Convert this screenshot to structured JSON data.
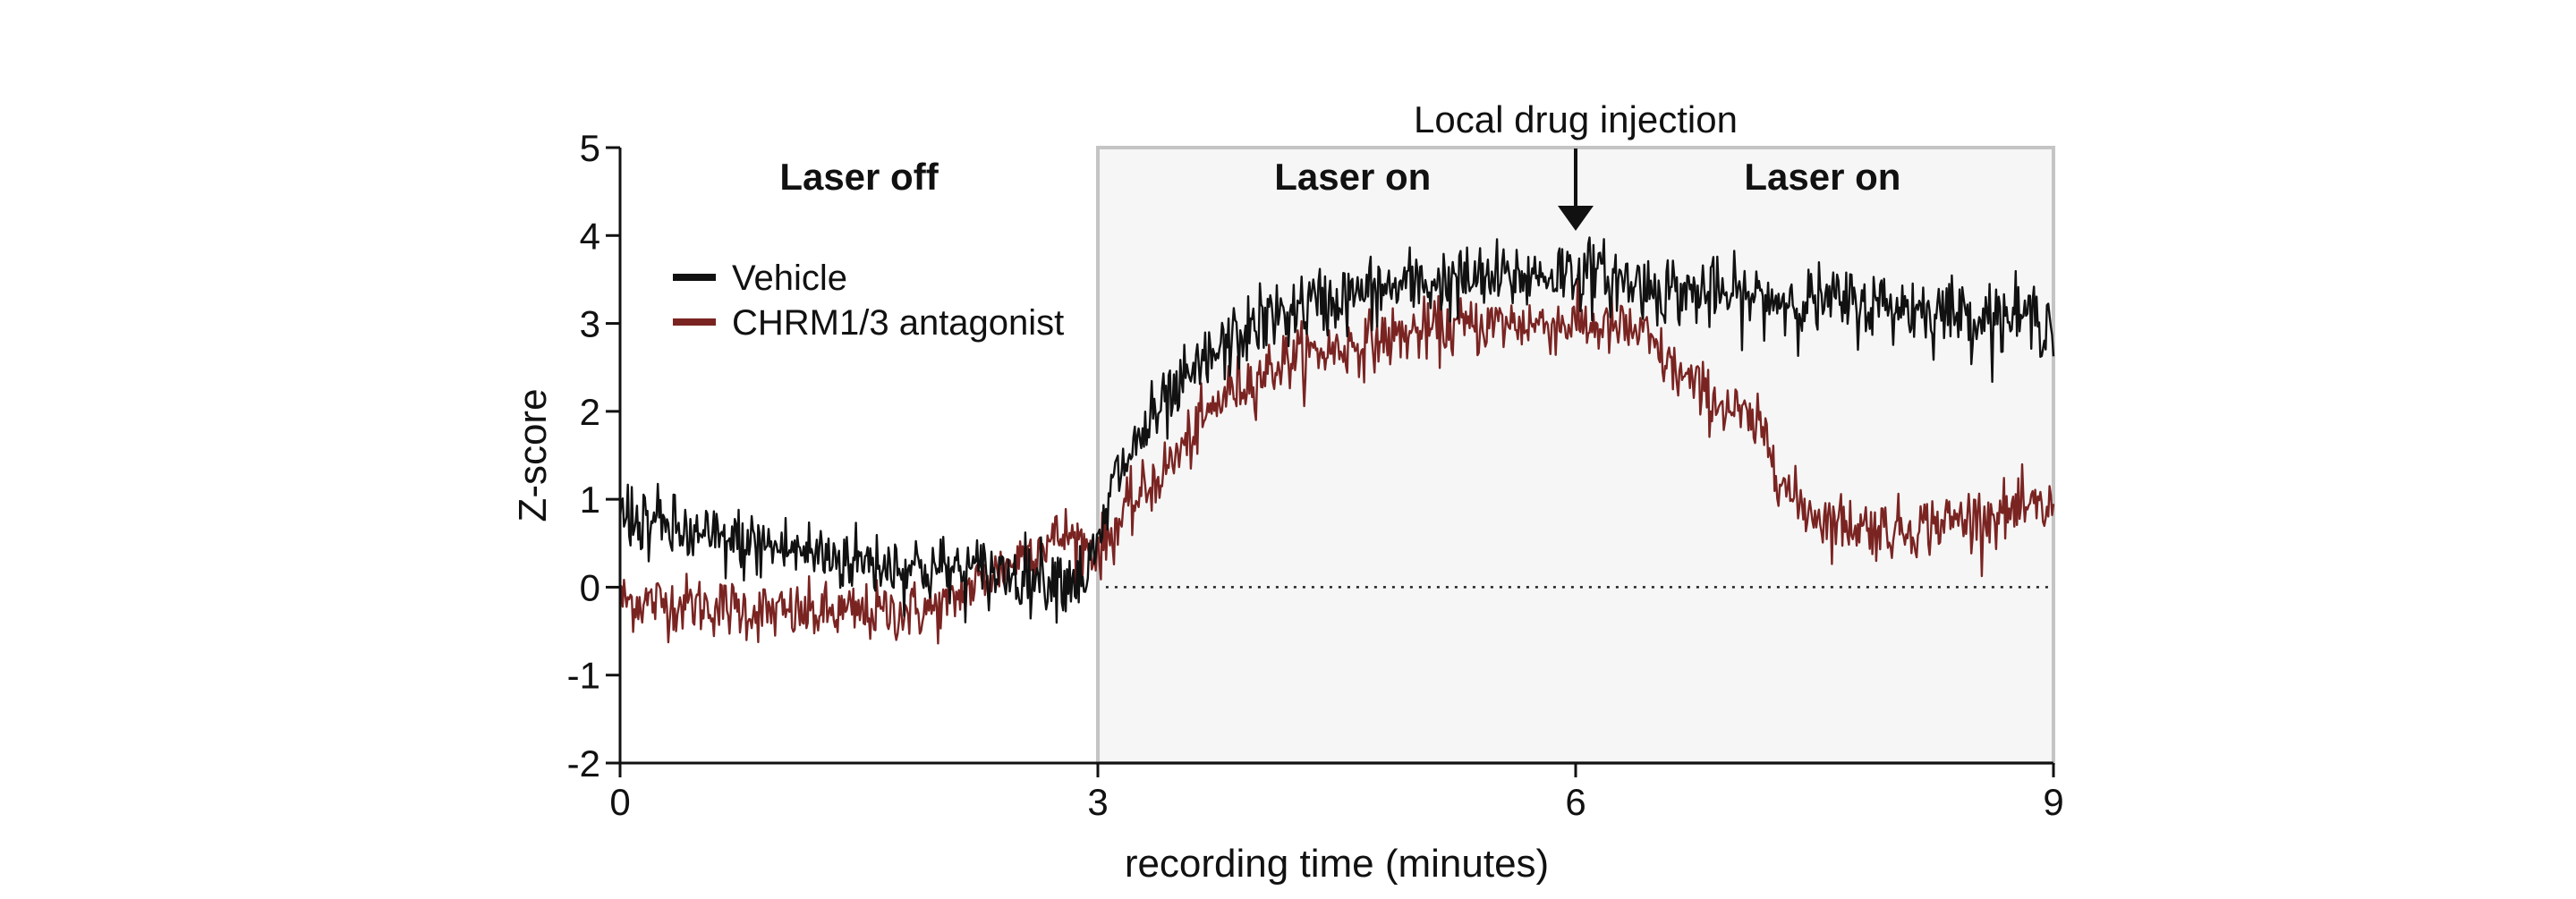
{
  "chart_data": {
    "type": "line",
    "title": "",
    "xlabel": "recording time (minutes)",
    "ylabel": "Z-score",
    "xlim": [
      0,
      9
    ],
    "ylim": [
      -2,
      5
    ],
    "x_ticks": [
      "0",
      "3",
      "6",
      "9"
    ],
    "x_tick_values": [
      0,
      3,
      6,
      9
    ],
    "y_ticks": [
      "5",
      "4",
      "3",
      "2",
      "1",
      "0",
      "-1",
      "-2"
    ],
    "y_tick_values": [
      5,
      4,
      3,
      2,
      1,
      0,
      -1,
      -2
    ],
    "grid": false,
    "legend_position": "top-left",
    "region_labels": {
      "laser_off": "Laser off",
      "laser_on_1": "Laser on",
      "laser_on_2": "Laser on"
    },
    "laser_on_window": [
      3,
      9
    ],
    "injection": {
      "label": "Local drug injection",
      "x": 6
    },
    "baseline_y": 0,
    "series": [
      {
        "name": "Vehicle",
        "color": "#111111",
        "x": [
          0,
          0.5,
          1.0,
          1.5,
          2.0,
          2.5,
          2.9,
          3.0,
          3.1,
          3.3,
          3.5,
          3.7,
          4.0,
          4.3,
          4.7,
          5.0,
          5.5,
          6.0,
          6.5,
          7.0,
          7.5,
          8.0,
          8.5,
          9.0
        ],
        "y": [
          0.85,
          0.55,
          0.45,
          0.3,
          0.2,
          0.15,
          0.1,
          0.4,
          1.2,
          1.8,
          2.2,
          2.6,
          3.0,
          3.2,
          3.35,
          3.45,
          3.5,
          3.6,
          3.4,
          3.3,
          3.25,
          3.2,
          3.1,
          3.05
        ],
        "noise": 0.2
      },
      {
        "name": "CHRM1/3 antagonist",
        "color": "#7a2422",
        "x": [
          0,
          0.5,
          1.0,
          1.5,
          2.0,
          2.3,
          2.6,
          2.8,
          3.0,
          3.2,
          3.5,
          3.8,
          4.2,
          4.6,
          5.0,
          5.5,
          6.0,
          6.4,
          6.6,
          6.8,
          7.0,
          7.2,
          7.35,
          7.6,
          8.0,
          8.5,
          9.0
        ],
        "y": [
          -0.15,
          -0.2,
          -0.3,
          -0.3,
          -0.25,
          0.1,
          0.45,
          0.6,
          0.4,
          0.9,
          1.5,
          2.2,
          2.6,
          2.75,
          2.9,
          3.0,
          3.0,
          2.9,
          2.5,
          2.2,
          2.0,
          1.7,
          1.0,
          0.75,
          0.65,
          0.8,
          0.9
        ],
        "noise": 0.17
      }
    ]
  }
}
